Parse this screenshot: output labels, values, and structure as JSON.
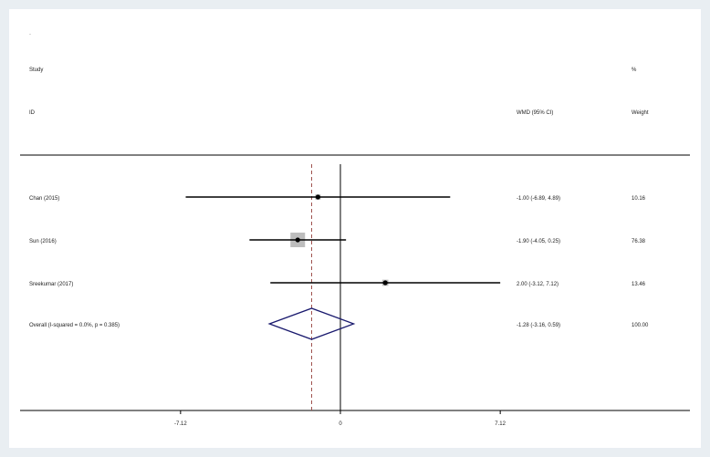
{
  "header": {
    "dot": "·",
    "study_label": "Study",
    "id_label": "ID",
    "effect_label": "WMD (95% CI)",
    "percent_label": "%",
    "weight_label": "Weight"
  },
  "chart_data": {
    "type": "forest",
    "effect_measure": "WMD (95% CI)",
    "studies": [
      {
        "label": "Chan (2015)",
        "ci_text": "-1.00 (-6.89, 4.89)",
        "weight_text": "10.16",
        "estimate": -1.0,
        "lower": -6.89,
        "upper": 4.89,
        "weight": 10.16
      },
      {
        "label": "Sun (2016)",
        "ci_text": "-1.90 (-4.05, 0.25)",
        "weight_text": "76.38",
        "estimate": -1.9,
        "lower": -4.05,
        "upper": 0.25,
        "weight": 76.38
      },
      {
        "label": "Sreekumar (2017)",
        "ci_text": "2.00 (-3.12, 7.12)",
        "weight_text": "13.46",
        "estimate": 2.0,
        "lower": -3.12,
        "upper": 7.12,
        "weight": 13.46
      }
    ],
    "overall": {
      "label": "Overall  (I-squared = 0.0%, p = 0.385)",
      "ci_text": "-1.28 (-3.16, 0.59)",
      "weight_text": "100.00",
      "estimate": -1.28,
      "lower": -3.16,
      "upper": 0.59
    },
    "x_ticks": [
      {
        "value": -7.12,
        "label": "-7.12"
      },
      {
        "value": 0,
        "label": "0"
      },
      {
        "value": 7.12,
        "label": "7.12"
      }
    ],
    "xlim": [
      -13.16,
      13.16
    ],
    "null_line": 0,
    "colors": {
      "ci_line": "#000000",
      "marker": "#000000",
      "weight_box": "#bdbdbd",
      "diamond": "#1a1a6e",
      "overall_line": "#a0524f"
    }
  }
}
